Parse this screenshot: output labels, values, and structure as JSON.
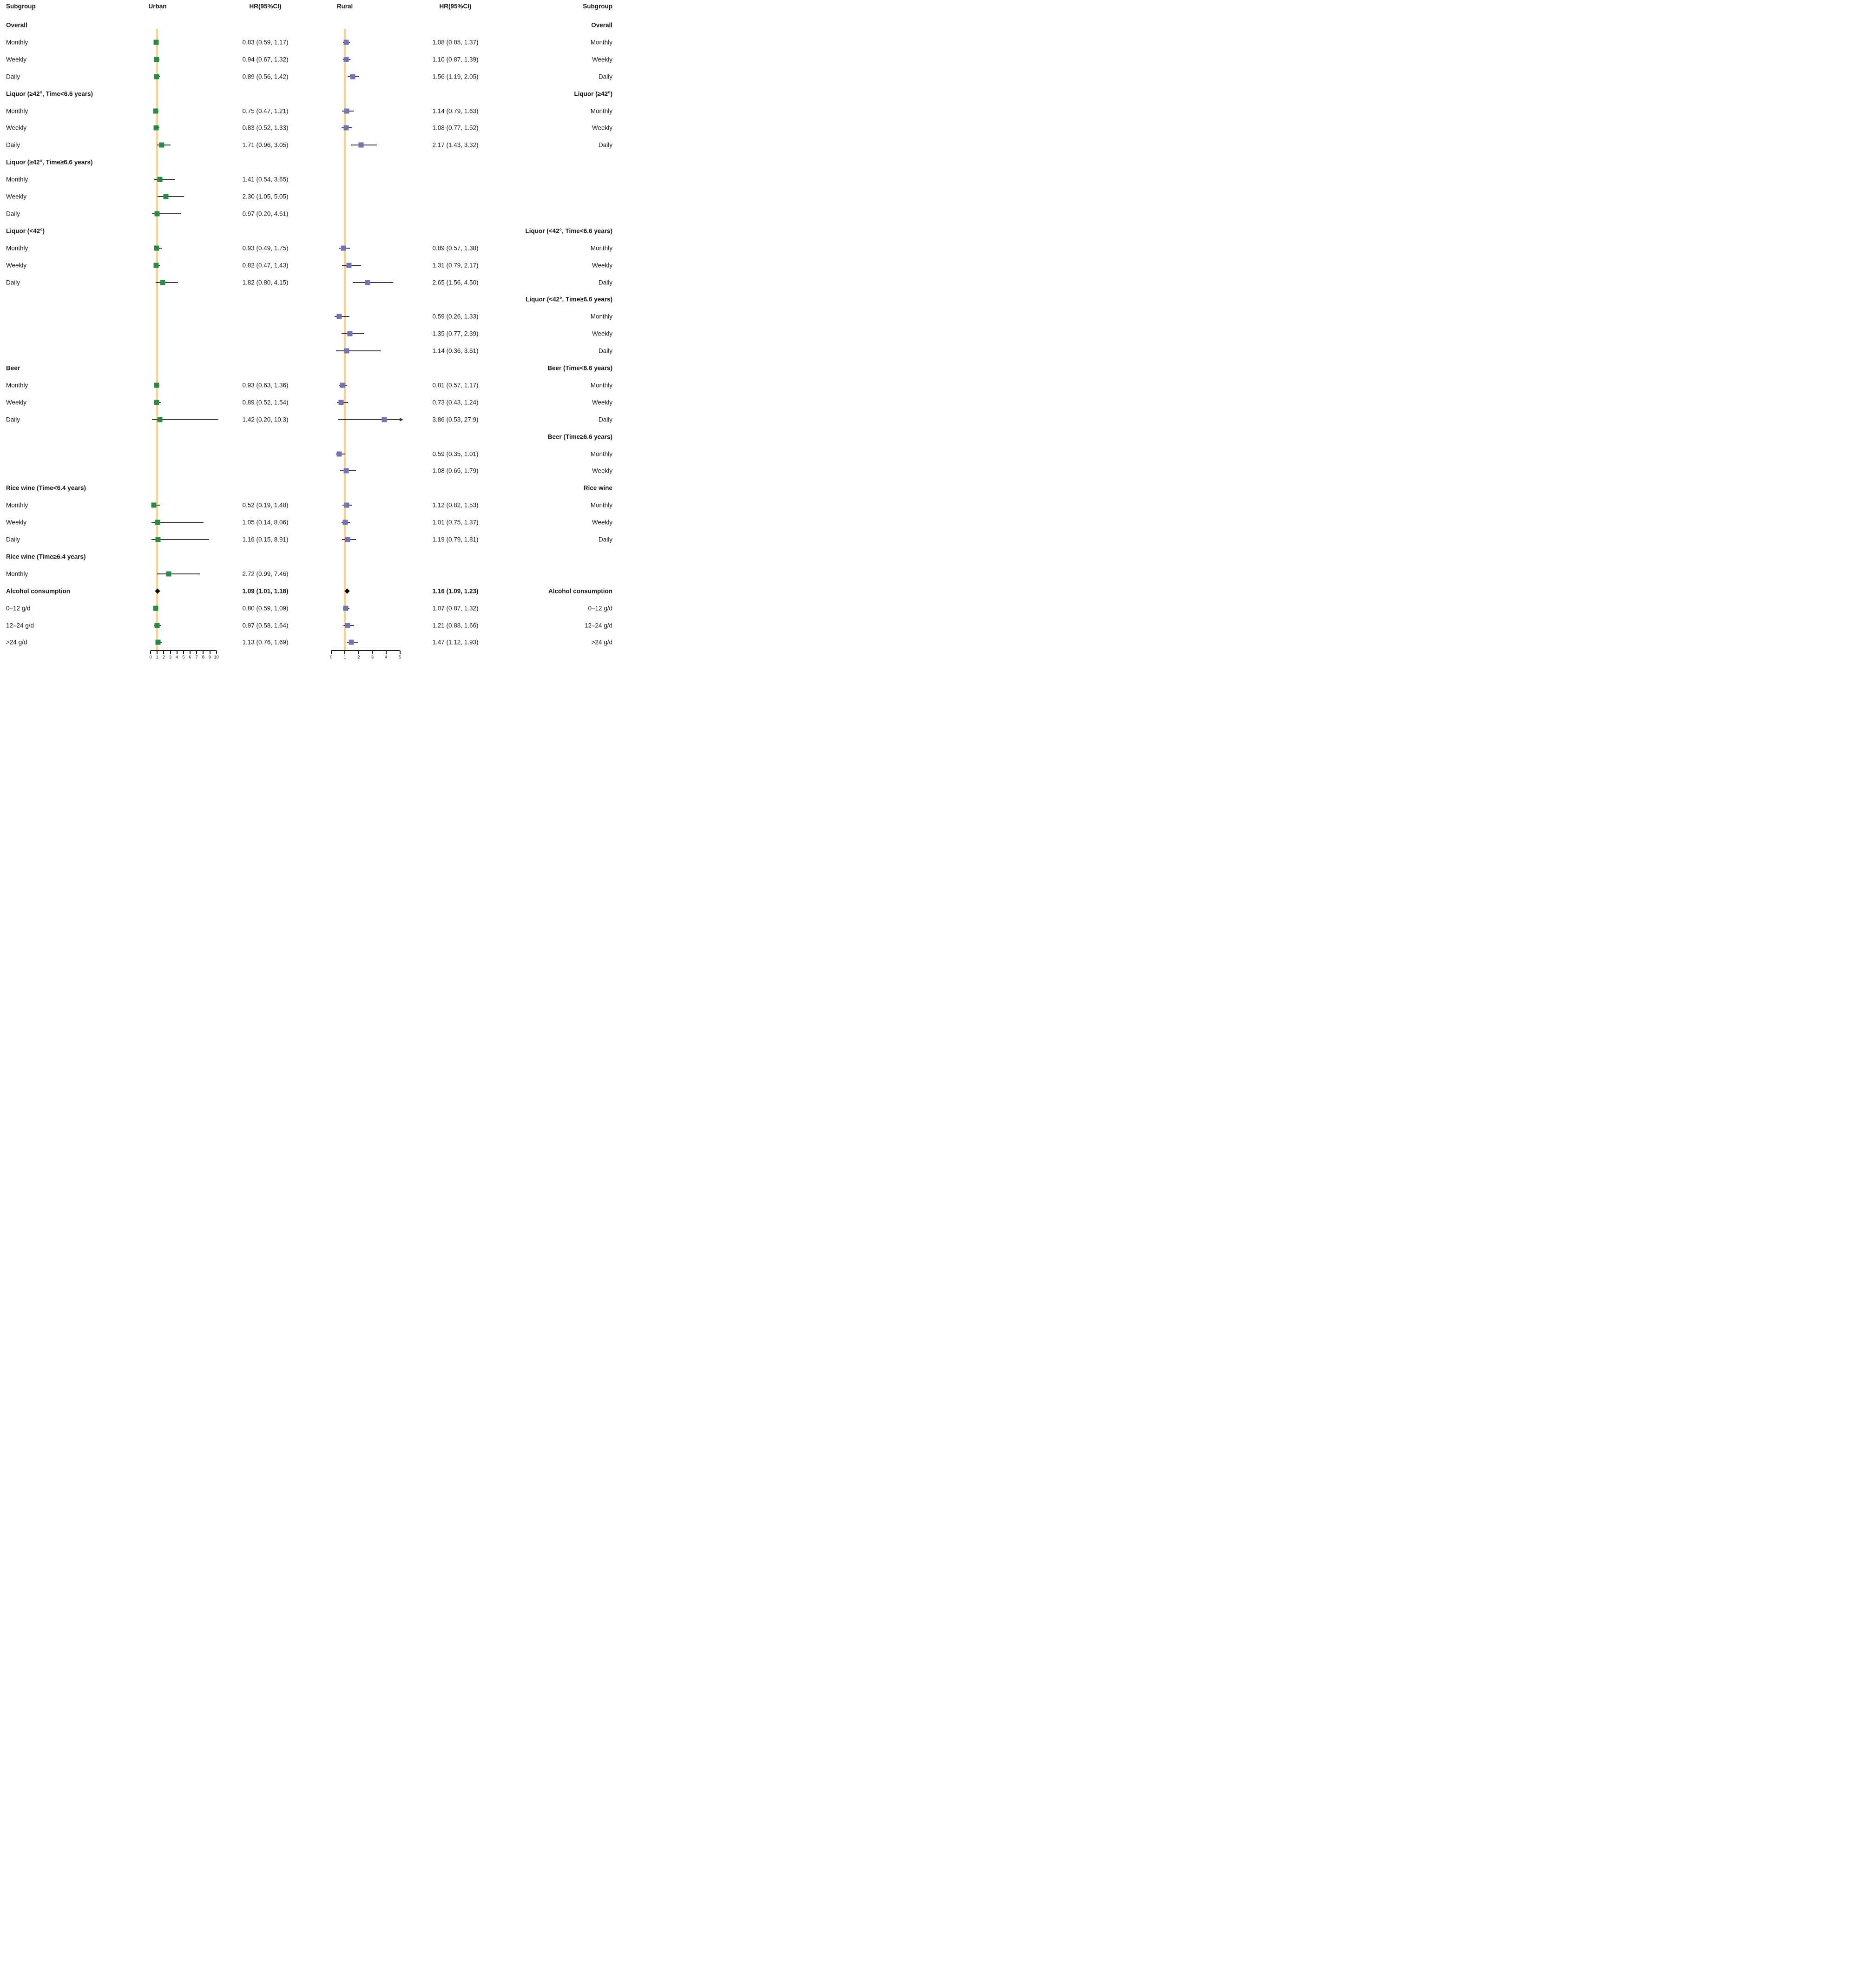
{
  "header": {
    "subgroup_left": "Subgroup",
    "urban": "Urban",
    "hr_left": "HR(95%CI)",
    "rural": "Rural",
    "hr_right": "HR(95%CI)",
    "subgroup_right": "Subgroup"
  },
  "colors": {
    "urban_marker": "#2a8a4b",
    "rural_marker": "#7473b5",
    "reference_line": "#fbd38d",
    "ci_line": "#3a3a3a",
    "summary_diamond": "#000000",
    "axis": "#1a1a1a",
    "text": "#1a1a1a"
  },
  "chart_data": {
    "type": "scatter",
    "title": "Forest plot of HR (95% CI) by subgroup, Urban vs Rural",
    "legend_position": "none",
    "grid": false,
    "panels": [
      {
        "name": "Urban",
        "xlim": [
          0,
          10
        ],
        "ticks": [
          0,
          1,
          2,
          3,
          4,
          5,
          6,
          7,
          8,
          9,
          10
        ],
        "reference_x": 1
      },
      {
        "name": "Rural",
        "xlim": [
          0,
          5
        ],
        "ticks": [
          0,
          1,
          2,
          3,
          4,
          5
        ],
        "reference_x": 1
      }
    ],
    "rows": [
      {
        "left": "Overall",
        "left_bold": true,
        "right": "Overall",
        "right_bold": true
      },
      {
        "left": "Monthly",
        "right": "Monthly",
        "urban": {
          "hr": 0.83,
          "low": 0.59,
          "high": 1.17,
          "label": "0.83 (0.59, 1.17)"
        },
        "rural": {
          "hr": 1.08,
          "low": 0.85,
          "high": 1.37,
          "label": "1.08 (0.85, 1.37)"
        }
      },
      {
        "left": "Weekly",
        "right": "Weekly",
        "urban": {
          "hr": 0.94,
          "low": 0.67,
          "high": 1.32,
          "label": "0.94 (0.67, 1.32)"
        },
        "rural": {
          "hr": 1.1,
          "low": 0.87,
          "high": 1.39,
          "label": "1.10 (0.87, 1.39)"
        }
      },
      {
        "left": "Daily",
        "right": "Daily",
        "urban": {
          "hr": 0.89,
          "low": 0.56,
          "high": 1.42,
          "label": "0.89 (0.56, 1.42)"
        },
        "rural": {
          "hr": 1.56,
          "low": 1.19,
          "high": 2.05,
          "label": "1.56 (1.19, 2.05)"
        }
      },
      {
        "left": "Liquor (≥42°, Time<6.6 years)",
        "left_bold": true,
        "right": "Liquor (≥42°)",
        "right_bold": true
      },
      {
        "left": "Monthly",
        "right": "Monthly",
        "urban": {
          "hr": 0.75,
          "low": 0.47,
          "high": 1.21,
          "label": "0.75 (0.47, 1.21)"
        },
        "rural": {
          "hr": 1.14,
          "low": 0.79,
          "high": 1.63,
          "label": "1.14 (0.79, 1.63)"
        }
      },
      {
        "left": "Weekly",
        "right": "Weekly",
        "urban": {
          "hr": 0.83,
          "low": 0.52,
          "high": 1.33,
          "label": "0.83 (0.52, 1.33)"
        },
        "rural": {
          "hr": 1.08,
          "low": 0.77,
          "high": 1.52,
          "label": "1.08 (0.77, 1.52)"
        }
      },
      {
        "left": "Daily",
        "right": "Daily",
        "urban": {
          "hr": 1.71,
          "low": 0.96,
          "high": 3.05,
          "label": "1.71 (0.96, 3.05)"
        },
        "rural": {
          "hr": 2.17,
          "low": 1.43,
          "high": 3.32,
          "label": "2.17 (1.43, 3.32)"
        }
      },
      {
        "left": "Liquor (≥42°, Time≥6.6 years)",
        "left_bold": true
      },
      {
        "left": "Monthly",
        "urban": {
          "hr": 1.41,
          "low": 0.54,
          "high": 3.65,
          "label": "1.41 (0.54, 3.65)"
        }
      },
      {
        "left": "Weekly",
        "urban": {
          "hr": 2.3,
          "low": 1.05,
          "high": 5.05,
          "label": "2.30 (1.05, 5.05)"
        }
      },
      {
        "left": "Daily",
        "urban": {
          "hr": 0.97,
          "low": 0.2,
          "high": 4.61,
          "label": "0.97 (0.20, 4.61)"
        }
      },
      {
        "left": "Liquor (<42°)",
        "left_bold": true,
        "right": "Liquor (<42°, Time<6.6 years)",
        "right_bold": true
      },
      {
        "left": "Monthly",
        "right": "Monthly",
        "urban": {
          "hr": 0.93,
          "low": 0.49,
          "high": 1.75,
          "label": "0.93 (0.49, 1.75)"
        },
        "rural": {
          "hr": 0.89,
          "low": 0.57,
          "high": 1.38,
          "label": "0.89 (0.57, 1.38)"
        }
      },
      {
        "left": "Weekly",
        "right": "Weekly",
        "urban": {
          "hr": 0.82,
          "low": 0.47,
          "high": 1.43,
          "label": "0.82 (0.47, 1.43)"
        },
        "rural": {
          "hr": 1.31,
          "low": 0.79,
          "high": 2.17,
          "label": "1.31 (0.79, 2.17)"
        }
      },
      {
        "left": "Daily",
        "right": "Daily",
        "urban": {
          "hr": 1.82,
          "low": 0.8,
          "high": 4.15,
          "label": "1.82 (0.80, 4.15)"
        },
        "rural": {
          "hr": 2.65,
          "low": 1.56,
          "high": 4.5,
          "label": "2.65 (1.56, 4.50)"
        }
      },
      {
        "right": "Liquor (<42°, Time≥6.6 years)",
        "right_bold": true
      },
      {
        "right": "Monthly",
        "rural": {
          "hr": 0.59,
          "low": 0.26,
          "high": 1.33,
          "label": "0.59 (0.26, 1.33)"
        }
      },
      {
        "right": "Weekly",
        "rural": {
          "hr": 1.35,
          "low": 0.77,
          "high": 2.39,
          "label": "1.35 (0.77, 2.39)"
        }
      },
      {
        "right": "Daily",
        "rural": {
          "hr": 1.14,
          "low": 0.36,
          "high": 3.61,
          "label": "1.14 (0.36, 3.61)"
        }
      },
      {
        "left": "Beer",
        "left_bold": true,
        "right": "Beer (Time<6.6 years)",
        "right_bold": true
      },
      {
        "left": "Monthly",
        "right": "Monthly",
        "urban": {
          "hr": 0.93,
          "low": 0.63,
          "high": 1.36,
          "label": "0.93 (0.63, 1.36)"
        },
        "rural": {
          "hr": 0.81,
          "low": 0.57,
          "high": 1.17,
          "label": "0.81 (0.57, 1.17)"
        }
      },
      {
        "left": "Weekly",
        "right": "Weekly",
        "urban": {
          "hr": 0.89,
          "low": 0.52,
          "high": 1.54,
          "label": "0.89 (0.52, 1.54)"
        },
        "rural": {
          "hr": 0.73,
          "low": 0.43,
          "high": 1.24,
          "label": "0.73 (0.43, 1.24)"
        }
      },
      {
        "left": "Daily",
        "right": "Daily",
        "urban": {
          "hr": 1.42,
          "low": 0.2,
          "high": 10.3,
          "label": "1.42 (0.20, 10.3)"
        },
        "rural": {
          "hr": 3.86,
          "low": 0.53,
          "high": 27.9,
          "label": "3.86 (0.53, 27.9)",
          "arrow": true
        }
      },
      {
        "right": "Beer (Time≥6.6 years)",
        "right_bold": true
      },
      {
        "right": "Monthly",
        "rural": {
          "hr": 0.59,
          "low": 0.35,
          "high": 1.01,
          "label": "0.59 (0.35, 1.01)"
        }
      },
      {
        "right": "Weekly",
        "rural": {
          "hr": 1.08,
          "low": 0.65,
          "high": 1.79,
          "label": "1.08 (0.65, 1.79)"
        }
      },
      {
        "left": "Rice wine (Time<6.4 years)",
        "left_bold": true,
        "right": "Rice wine",
        "right_bold": true
      },
      {
        "left": "Monthly",
        "right": "Monthly",
        "urban": {
          "hr": 0.52,
          "low": 0.19,
          "high": 1.48,
          "label": "0.52 (0.19, 1.48)"
        },
        "rural": {
          "hr": 1.12,
          "low": 0.82,
          "high": 1.53,
          "label": "1.12 (0.82, 1.53)"
        }
      },
      {
        "left": "Weekly",
        "right": "Weekly",
        "urban": {
          "hr": 1.05,
          "low": 0.14,
          "high": 8.06,
          "label": "1.05 (0.14, 8.06)"
        },
        "rural": {
          "hr": 1.01,
          "low": 0.75,
          "high": 1.37,
          "label": "1.01 (0.75, 1.37)"
        }
      },
      {
        "left": "Daily",
        "right": "Daily",
        "urban": {
          "hr": 1.16,
          "low": 0.15,
          "high": 8.91,
          "label": "1.16 (0.15, 8.91)"
        },
        "rural": {
          "hr": 1.19,
          "low": 0.79,
          "high": 1.81,
          "label": "1.19 (0.79, 1.81)"
        }
      },
      {
        "left": "Rice wine (Time≥6.4 years)",
        "left_bold": true
      },
      {
        "left": "Monthly",
        "urban": {
          "hr": 2.72,
          "low": 0.99,
          "high": 7.46,
          "label": "2.72 (0.99, 7.46)"
        }
      },
      {
        "left": "Alcohol consumption",
        "left_bold": true,
        "right": "Alcohol consumption",
        "right_bold": true,
        "summary": true,
        "values_bold": true,
        "urban": {
          "hr": 1.09,
          "low": 1.01,
          "high": 1.18,
          "label": "1.09 (1.01, 1.18)"
        },
        "rural": {
          "hr": 1.16,
          "low": 1.09,
          "high": 1.23,
          "label": "1.16 (1.09, 1.23)"
        }
      },
      {
        "left": "0–12 g/d",
        "right": "0–12 g/d",
        "urban": {
          "hr": 0.8,
          "low": 0.59,
          "high": 1.09,
          "label": "0.80 (0.59, 1.09)"
        },
        "rural": {
          "hr": 1.07,
          "low": 0.87,
          "high": 1.32,
          "label": "1.07 (0.87, 1.32)"
        }
      },
      {
        "left": "12–24 g/d",
        "right": "12–24 g/d",
        "urban": {
          "hr": 0.97,
          "low": 0.58,
          "high": 1.64,
          "label": "0.97 (0.58, 1.64)"
        },
        "rural": {
          "hr": 1.21,
          "low": 0.88,
          "high": 1.66,
          "label": "1.21 (0.88, 1.66)"
        }
      },
      {
        "left": ">24 g/d",
        "right": ">24 g/d",
        "urban": {
          "hr": 1.13,
          "low": 0.76,
          "high": 1.69,
          "label": "1.13 (0.76, 1.69)"
        },
        "rural": {
          "hr": 1.47,
          "low": 1.12,
          "high": 1.93,
          "label": "1.47 (1.12, 1.93)"
        }
      }
    ]
  }
}
